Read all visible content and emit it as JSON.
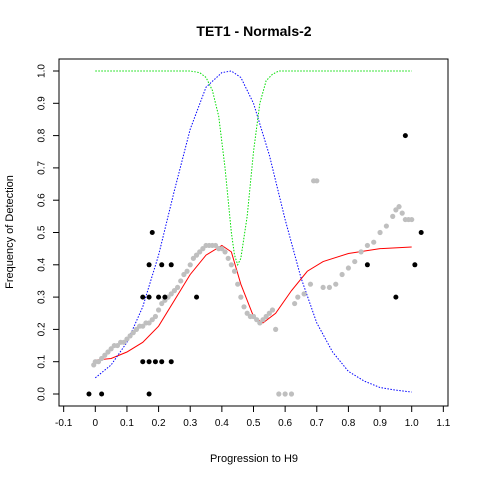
{
  "chart_data": {
    "type": "scatter",
    "title": "TET1 - Normals-2",
    "xlabel": "Progression to H9",
    "ylabel": "Frequency of Detection",
    "xlim": [
      -0.1,
      1.1
    ],
    "ylim": [
      0.0,
      1.0
    ],
    "x_ticks": [
      "-0.1",
      "0",
      "0.1",
      "0.2",
      "0.3",
      "0.4",
      "0.5",
      "0.6",
      "0.7",
      "0.8",
      "0.9",
      "1.0",
      "1.1"
    ],
    "y_ticks": [
      "0.0",
      "0.1",
      "0.2",
      "0.3",
      "0.4",
      "0.5",
      "0.6",
      "0.7",
      "0.8",
      "0.9",
      "1.0"
    ],
    "grid": false,
    "legend": "none",
    "colors": {
      "observed": "#000000",
      "smoothed_points": "#bfbfbf",
      "fit_curve": "#ff0000",
      "density_curve": "#0000ff",
      "window_curve": "#00dd00"
    },
    "series": [
      {
        "kind": "points",
        "color": "#000000",
        "points": [
          [
            -0.02,
            0.0
          ],
          [
            0.02,
            0.0
          ],
          [
            0.17,
            0.0
          ],
          [
            0.15,
            0.1
          ],
          [
            0.17,
            0.1
          ],
          [
            0.19,
            0.1
          ],
          [
            0.21,
            0.1
          ],
          [
            0.24,
            0.1
          ],
          [
            0.15,
            0.3
          ],
          [
            0.17,
            0.3
          ],
          [
            0.2,
            0.3
          ],
          [
            0.22,
            0.3
          ],
          [
            0.32,
            0.3
          ],
          [
            0.17,
            0.4
          ],
          [
            0.21,
            0.4
          ],
          [
            0.24,
            0.4
          ],
          [
            0.18,
            0.5
          ],
          [
            0.86,
            0.4
          ],
          [
            1.01,
            0.4
          ],
          [
            1.03,
            0.5
          ],
          [
            0.95,
            0.3
          ],
          [
            0.98,
            0.8
          ]
        ]
      },
      {
        "kind": "smoothed-points",
        "color": "#bfbfbf",
        "points": [
          [
            -0.005,
            0.09
          ],
          [
            0.0,
            0.1
          ],
          [
            0.01,
            0.1
          ],
          [
            0.02,
            0.11
          ],
          [
            0.03,
            0.12
          ],
          [
            0.04,
            0.13
          ],
          [
            0.05,
            0.14
          ],
          [
            0.06,
            0.15
          ],
          [
            0.07,
            0.15
          ],
          [
            0.08,
            0.16
          ],
          [
            0.09,
            0.16
          ],
          [
            0.1,
            0.17
          ],
          [
            0.11,
            0.18
          ],
          [
            0.12,
            0.19
          ],
          [
            0.13,
            0.2
          ],
          [
            0.14,
            0.21
          ],
          [
            0.15,
            0.21
          ],
          [
            0.16,
            0.22
          ],
          [
            0.17,
            0.22
          ],
          [
            0.18,
            0.23
          ],
          [
            0.19,
            0.24
          ],
          [
            0.2,
            0.26
          ],
          [
            0.21,
            0.28
          ],
          [
            0.22,
            0.29
          ],
          [
            0.23,
            0.3
          ],
          [
            0.24,
            0.31
          ],
          [
            0.25,
            0.32
          ],
          [
            0.26,
            0.33
          ],
          [
            0.27,
            0.35
          ],
          [
            0.28,
            0.37
          ],
          [
            0.29,
            0.38
          ],
          [
            0.3,
            0.4
          ],
          [
            0.31,
            0.42
          ],
          [
            0.32,
            0.43
          ],
          [
            0.33,
            0.44
          ],
          [
            0.34,
            0.45
          ],
          [
            0.35,
            0.46
          ],
          [
            0.36,
            0.46
          ],
          [
            0.37,
            0.46
          ],
          [
            0.38,
            0.46
          ],
          [
            0.39,
            0.45
          ],
          [
            0.4,
            0.45
          ],
          [
            0.41,
            0.44
          ],
          [
            0.42,
            0.42
          ],
          [
            0.43,
            0.4
          ],
          [
            0.44,
            0.38
          ],
          [
            0.45,
            0.34
          ],
          [
            0.46,
            0.3
          ],
          [
            0.47,
            0.27
          ],
          [
            0.48,
            0.25
          ],
          [
            0.49,
            0.24
          ],
          [
            0.5,
            0.24
          ],
          [
            0.51,
            0.23
          ],
          [
            0.52,
            0.22
          ],
          [
            0.53,
            0.23
          ],
          [
            0.54,
            0.24
          ],
          [
            0.55,
            0.25
          ],
          [
            0.56,
            0.26
          ],
          [
            0.57,
            0.2
          ],
          [
            0.58,
            0.0
          ],
          [
            0.6,
            0.0
          ],
          [
            0.62,
            0.0
          ],
          [
            0.63,
            0.28
          ],
          [
            0.64,
            0.3
          ],
          [
            0.66,
            0.31
          ],
          [
            0.68,
            0.34
          ],
          [
            0.69,
            0.66
          ],
          [
            0.7,
            0.66
          ],
          [
            0.72,
            0.33
          ],
          [
            0.74,
            0.33
          ],
          [
            0.76,
            0.34
          ],
          [
            0.78,
            0.37
          ],
          [
            0.8,
            0.39
          ],
          [
            0.82,
            0.41
          ],
          [
            0.84,
            0.44
          ],
          [
            0.86,
            0.46
          ],
          [
            0.88,
            0.47
          ],
          [
            0.9,
            0.5
          ],
          [
            0.92,
            0.52
          ],
          [
            0.94,
            0.55
          ],
          [
            0.95,
            0.57
          ],
          [
            0.96,
            0.58
          ],
          [
            0.97,
            0.56
          ],
          [
            0.98,
            0.54
          ],
          [
            0.99,
            0.54
          ],
          [
            1.0,
            0.54
          ]
        ]
      },
      {
        "kind": "curve",
        "color": "#ff0000",
        "points": [
          [
            0.0,
            0.105
          ],
          [
            0.05,
            0.11
          ],
          [
            0.1,
            0.13
          ],
          [
            0.15,
            0.16
          ],
          [
            0.2,
            0.21
          ],
          [
            0.25,
            0.29
          ],
          [
            0.3,
            0.37
          ],
          [
            0.35,
            0.43
          ],
          [
            0.4,
            0.46
          ],
          [
            0.43,
            0.44
          ],
          [
            0.46,
            0.34
          ],
          [
            0.5,
            0.24
          ],
          [
            0.53,
            0.22
          ],
          [
            0.57,
            0.25
          ],
          [
            0.62,
            0.32
          ],
          [
            0.67,
            0.38
          ],
          [
            0.72,
            0.41
          ],
          [
            0.8,
            0.435
          ],
          [
            0.9,
            0.45
          ],
          [
            1.0,
            0.455
          ]
        ]
      },
      {
        "kind": "curve",
        "dashed": true,
        "color": "#0000ff",
        "points": [
          [
            0.0,
            0.05
          ],
          [
            0.05,
            0.09
          ],
          [
            0.1,
            0.16
          ],
          [
            0.15,
            0.27
          ],
          [
            0.2,
            0.43
          ],
          [
            0.25,
            0.63
          ],
          [
            0.3,
            0.82
          ],
          [
            0.35,
            0.95
          ],
          [
            0.4,
            0.995
          ],
          [
            0.43,
            1.0
          ],
          [
            0.46,
            0.98
          ],
          [
            0.5,
            0.9
          ],
          [
            0.55,
            0.74
          ],
          [
            0.6,
            0.54
          ],
          [
            0.65,
            0.36
          ],
          [
            0.7,
            0.22
          ],
          [
            0.75,
            0.13
          ],
          [
            0.8,
            0.07
          ],
          [
            0.85,
            0.04
          ],
          [
            0.9,
            0.02
          ],
          [
            0.95,
            0.012
          ],
          [
            1.0,
            0.006
          ]
        ]
      },
      {
        "kind": "curve",
        "dashed": true,
        "color": "#00dd00",
        "points": [
          [
            0.0,
            1.0
          ],
          [
            0.3,
            1.0
          ],
          [
            0.33,
            0.995
          ],
          [
            0.35,
            0.98
          ],
          [
            0.37,
            0.94
          ],
          [
            0.39,
            0.86
          ],
          [
            0.41,
            0.7
          ],
          [
            0.43,
            0.5
          ],
          [
            0.44,
            0.43
          ],
          [
            0.45,
            0.4
          ],
          [
            0.46,
            0.42
          ],
          [
            0.48,
            0.55
          ],
          [
            0.5,
            0.75
          ],
          [
            0.52,
            0.9
          ],
          [
            0.54,
            0.97
          ],
          [
            0.56,
            0.99
          ],
          [
            0.58,
            1.0
          ],
          [
            1.0,
            1.0
          ]
        ]
      }
    ]
  }
}
